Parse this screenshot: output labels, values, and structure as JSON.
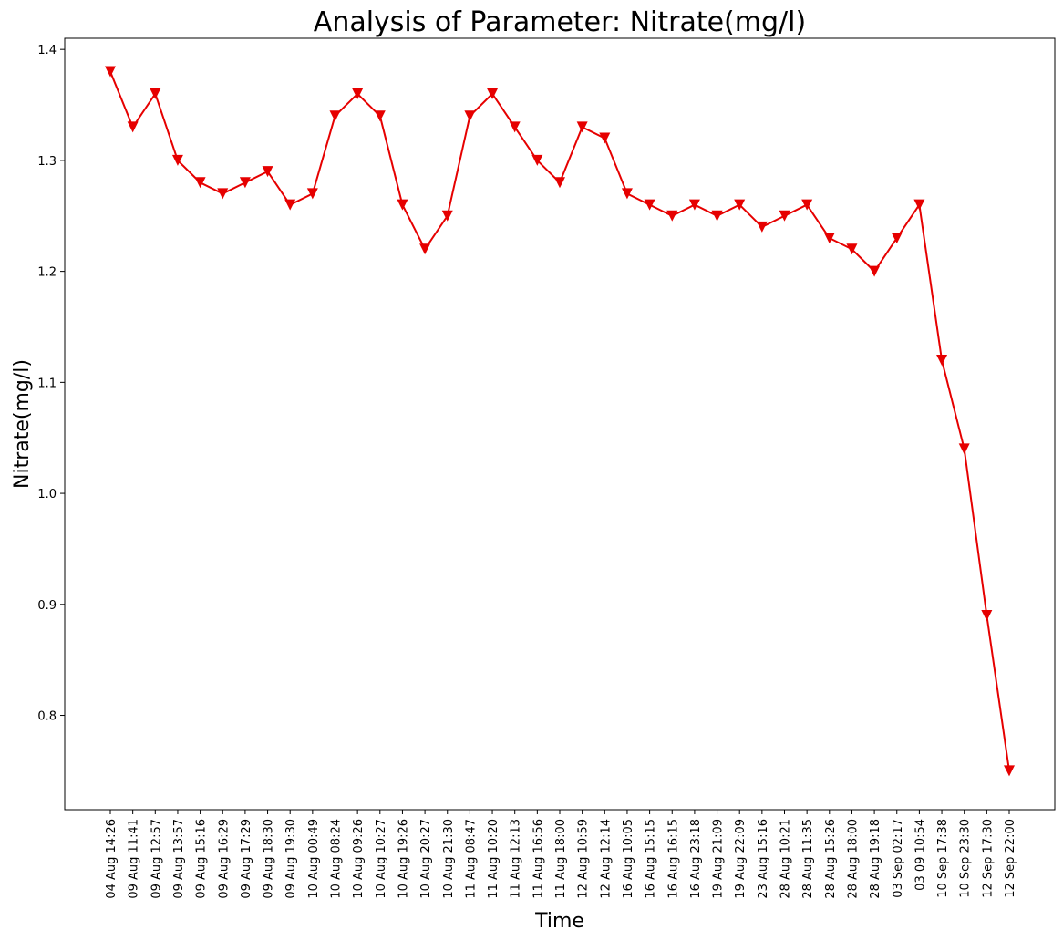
{
  "chart_data": {
    "type": "line",
    "title": "Analysis of Parameter: Nitrate(mg/l)",
    "xlabel": "Time",
    "ylabel": "Nitrate(mg/l)",
    "ylim": [
      0.715,
      1.41
    ],
    "yticks": [
      "0.8",
      "0.9",
      "1.0",
      "1.1",
      "1.2",
      "1.3",
      "1.4"
    ],
    "grid": false,
    "marker": "triangle-down",
    "line_color": "#e60000",
    "categories": [
      "04 Aug 14:26",
      "09 Aug 11:41",
      "09 Aug 12:57",
      "09 Aug 13:57",
      "09 Aug 15:16",
      "09 Aug 16:29",
      "09 Aug 17:29",
      "09 Aug 18:30",
      "09 Aug 19:30",
      "10 Aug 00:49",
      "10 Aug 08:24",
      "10 Aug 09:26",
      "10 Aug 10:27",
      "10 Aug 19:26",
      "10 Aug 20:27",
      "10 Aug 21:30",
      "11 Aug 08:47",
      "11 Aug 10:20",
      "11 Aug 12:13",
      "11 Aug 16:56",
      "11 Aug 18:00",
      "12 Aug 10:59",
      "12 Aug 12:14",
      "16 Aug 10:05",
      "16 Aug 15:15",
      "16 Aug 16:15",
      "16 Aug 23:18",
      "19 Aug 21:09",
      "19 Aug 22:09",
      "23 Aug 15:16",
      "28 Aug 10:21",
      "28 Aug 11:35",
      "28 Aug 15:26",
      "28 Aug 18:00",
      "28 Aug 19:18",
      "03 Sep 02:17",
      "03 09 10:54",
      "10 Sep 17:38",
      "10 Sep 23:30",
      "12 Sep 17:30",
      "12 Sep 22:00"
    ],
    "series": [
      {
        "values": [
          1.38,
          1.33,
          1.36,
          1.3,
          1.28,
          1.27,
          1.28,
          1.29,
          1.26,
          1.27,
          1.34,
          1.36,
          1.34,
          1.26,
          1.22,
          1.25,
          1.34,
          1.36,
          1.33,
          1.3,
          1.28,
          1.33,
          1.32,
          1.27,
          1.26,
          1.25,
          1.26,
          1.25,
          1.26,
          1.24,
          1.25,
          1.26,
          1.23,
          1.22,
          1.2,
          1.23,
          1.26,
          1.12,
          1.04,
          0.89,
          0.75
        ]
      }
    ]
  }
}
